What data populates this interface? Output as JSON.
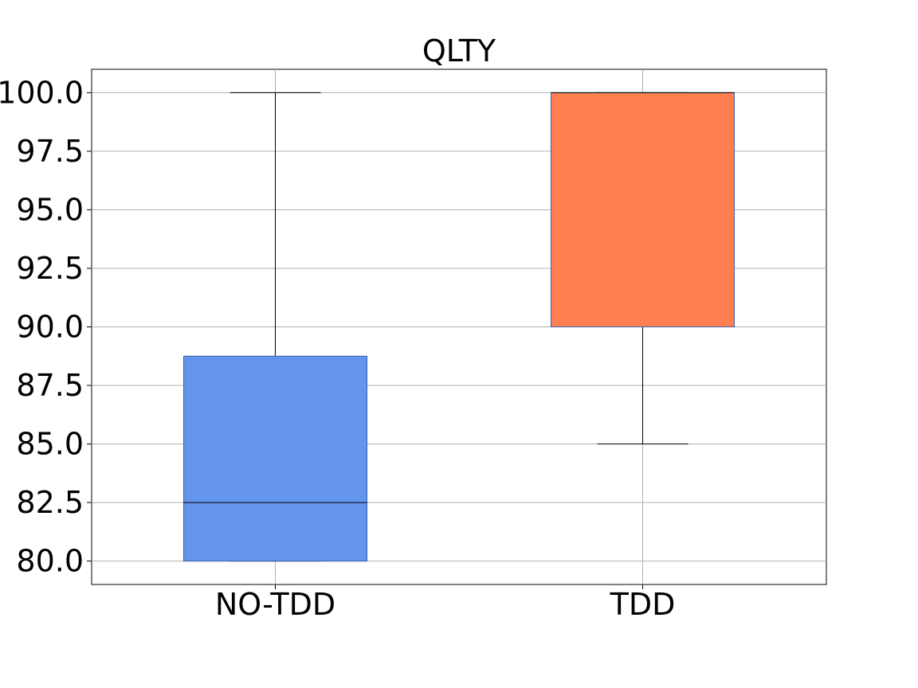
{
  "chart_data": {
    "type": "box",
    "title": "QLTY",
    "xlabel": "",
    "ylabel": "",
    "categories": [
      "NO-TDD",
      "TDD"
    ],
    "ylim": [
      79.0,
      101.0
    ],
    "yticks": [
      "80.0",
      "82.5",
      "85.0",
      "87.5",
      "90.0",
      "92.5",
      "95.0",
      "97.5",
      "100.0"
    ],
    "grid": true,
    "legend": "none",
    "boxes": [
      {
        "category": "NO-TDD",
        "whisker_low": 80.0,
        "q1": 80.0,
        "median": 82.5,
        "q3": 88.75,
        "whisker_high": 100.0,
        "color": "#6495ED"
      },
      {
        "category": "TDD",
        "whisker_low": 85.0,
        "q1": 90.0,
        "median": 100.0,
        "q3": 100.0,
        "whisker_high": 100.0,
        "color": "#FF7F50"
      }
    ]
  }
}
